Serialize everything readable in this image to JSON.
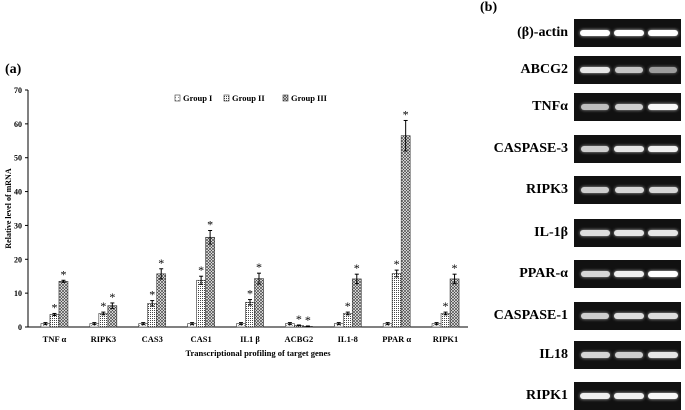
{
  "panel_a_label": "(a)",
  "panel_b_label": "(b)",
  "chart_data": {
    "type": "bar",
    "title": "",
    "xlabel": "Transcriptional  profiling  of target genes",
    "ylabel": "Relative level of mRNA",
    "ylim": [
      0,
      70
    ],
    "yticks": [
      0,
      10,
      20,
      30,
      40,
      50,
      60,
      70
    ],
    "legend_position": "top-center",
    "categories": [
      "TNF α",
      "RIPK3",
      "CAS3",
      "CAS1",
      "IL1 β",
      "ACBG2",
      "IL1-8",
      "PPAR α",
      "RIPK1"
    ],
    "series": [
      {
        "name": "Group I",
        "pattern": "dots",
        "values": [
          1,
          1,
          1,
          1,
          1,
          1,
          1,
          1,
          1
        ],
        "errors": [
          0.3,
          0.3,
          0.3,
          0.3,
          0.3,
          0.3,
          0.3,
          0.3,
          0.3
        ],
        "significant": [
          false,
          false,
          false,
          false,
          false,
          false,
          false,
          false,
          false
        ]
      },
      {
        "name": "Group II",
        "pattern": "dense",
        "values": [
          3.7,
          4.0,
          7.0,
          13.8,
          7.3,
          0.5,
          4.0,
          15.8,
          4.0
        ],
        "errors": [
          0.3,
          0.4,
          0.8,
          1.2,
          0.8,
          0.1,
          0.4,
          1.0,
          0.4
        ],
        "significant": [
          true,
          true,
          true,
          true,
          true,
          true,
          true,
          true,
          true
        ]
      },
      {
        "name": "Group III",
        "pattern": "crosshatch",
        "values": [
          13.5,
          6.3,
          15.7,
          26.5,
          14.3,
          0.2,
          14.2,
          56.5,
          14.2
        ],
        "errors": [
          0.3,
          0.8,
          1.5,
          2.0,
          1.6,
          0.1,
          1.4,
          4.5,
          1.4
        ],
        "significant": [
          true,
          true,
          true,
          true,
          true,
          true,
          true,
          true,
          true
        ]
      }
    ]
  },
  "gel": {
    "marker": "*",
    "lanes": 3,
    "rows": [
      {
        "label": "(β)-actin",
        "intensity": [
          1.0,
          1.0,
          1.0
        ]
      },
      {
        "label": "ABCG2",
        "intensity": [
          0.85,
          0.65,
          0.4
        ]
      },
      {
        "label": "TNFα",
        "intensity": [
          0.6,
          0.7,
          0.95
        ]
      },
      {
        "label": "CASPASE-3",
        "intensity": [
          0.7,
          0.85,
          0.9
        ]
      },
      {
        "label": "RIPK3",
        "intensity": [
          0.7,
          0.75,
          0.75
        ]
      },
      {
        "label": "IL-1β",
        "intensity": [
          0.8,
          0.85,
          0.85
        ]
      },
      {
        "label": "PPAR-α",
        "intensity": [
          0.75,
          0.9,
          1.0
        ]
      },
      {
        "label": "CASPASE-1",
        "intensity": [
          0.7,
          0.8,
          0.8
        ]
      },
      {
        "label": "IL18",
        "intensity": [
          0.75,
          0.7,
          0.85
        ]
      },
      {
        "label": "RIPK1",
        "intensity": [
          0.9,
          0.9,
          0.95
        ]
      }
    ]
  }
}
